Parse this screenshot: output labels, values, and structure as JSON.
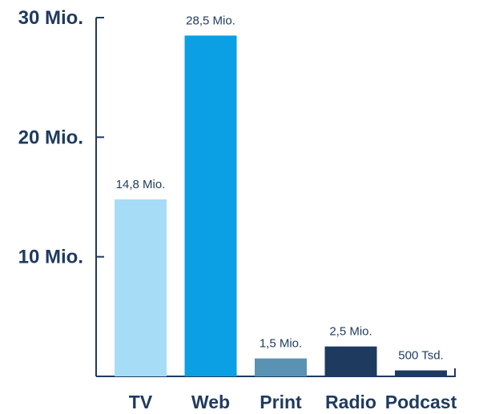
{
  "chart_data": {
    "type": "bar",
    "title": "",
    "xlabel": "",
    "ylabel": "",
    "categories": [
      "TV",
      "Web",
      "Print",
      "Radio",
      "Podcast"
    ],
    "values": [
      14.8,
      28.5,
      1.5,
      2.5,
      0.5
    ],
    "unit": "Mio.",
    "data_labels": [
      "14,8 Mio.",
      "28,5 Mio.",
      "1,5 Mio.",
      "2,5 Mio.",
      "500 Tsd."
    ],
    "bar_colors": [
      "#a7dcf7",
      "#0aa0e3",
      "#5a92b4",
      "#1f3a5f",
      "#1f3a5f"
    ],
    "ylim": [
      0,
      30
    ],
    "yticks": [
      10,
      20,
      30
    ],
    "ytick_labels": [
      "10 Mio.",
      "20 Mio.",
      "30 Mio."
    ],
    "grid": false,
    "legend": "none"
  },
  "colors": {
    "axis": "#1f3a5f",
    "text": "#1f3a5f",
    "background": "#ffffff"
  }
}
